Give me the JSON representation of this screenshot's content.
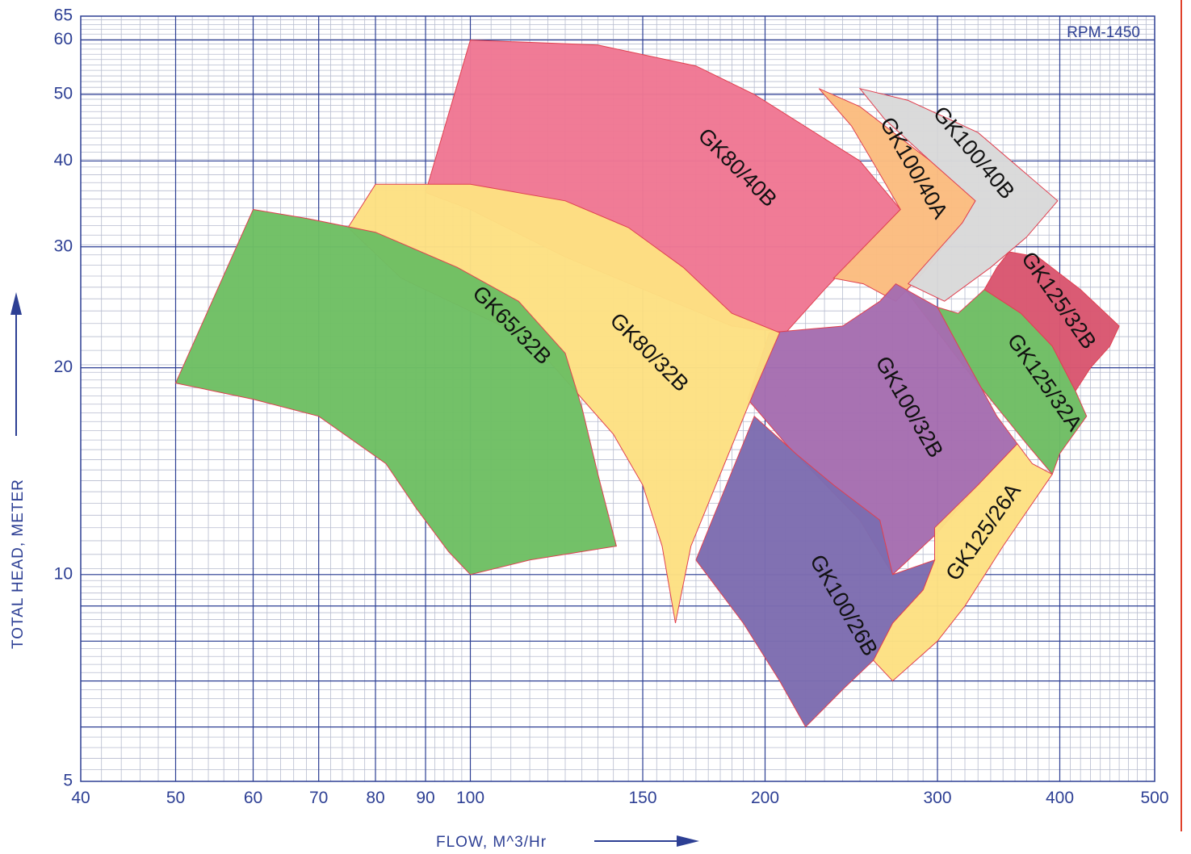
{
  "chart_data": {
    "type": "area",
    "title": "",
    "annotation": "RPM-1450",
    "xlabel": "FLOW, M^3/Hr",
    "ylabel": "TOTAL HEAD, METER",
    "xscale": "log",
    "yscale": "log",
    "xlim": [
      40,
      500
    ],
    "ylim": [
      5,
      65
    ],
    "grid": true,
    "x_ticks": [
      40,
      50,
      60,
      70,
      80,
      90,
      100,
      150,
      200,
      300,
      400,
      500
    ],
    "y_ticks": [
      5,
      10,
      20,
      30,
      40,
      50,
      60,
      65
    ],
    "series": [
      {
        "name": "GK80/40B",
        "color": "#ef7793",
        "label_angle": 45,
        "points": [
          [
            100,
            60
          ],
          [
            135,
            59
          ],
          [
            170,
            55
          ],
          [
            195,
            50
          ],
          [
            250,
            40
          ],
          [
            275,
            34
          ],
          [
            230,
            26
          ],
          [
            210,
            22.5
          ],
          [
            185,
            23
          ],
          [
            125,
            29
          ],
          [
            100,
            34
          ],
          [
            90,
            36
          ]
        ]
      },
      {
        "name": "GK100/40A",
        "color": "#fbbc7f",
        "label_angle": 60,
        "points": [
          [
            227,
            51
          ],
          [
            250,
            48
          ],
          [
            295,
            40
          ],
          [
            328,
            35
          ],
          [
            318,
            32.5
          ],
          [
            290,
            27.5
          ],
          [
            272,
            25
          ],
          [
            252,
            26.5
          ],
          [
            235,
            27
          ],
          [
            275,
            34
          ],
          [
            260,
            39
          ],
          [
            245,
            45
          ]
        ]
      },
      {
        "name": "GK100/40B",
        "color": "#d9d9d9",
        "label_angle": 50,
        "points": [
          [
            250,
            51
          ],
          [
            280,
            49
          ],
          [
            330,
            44
          ],
          [
            398,
            35
          ],
          [
            370,
            31
          ],
          [
            340,
            28
          ],
          [
            305,
            25
          ],
          [
            280,
            26.5
          ],
          [
            318,
            32.5
          ],
          [
            328,
            35
          ],
          [
            295,
            40
          ],
          [
            265,
            46
          ]
        ]
      },
      {
        "name": "GK125/32B",
        "color": "#d9566f",
        "label_angle": 55,
        "points": [
          [
            355,
            29.5
          ],
          [
            380,
            29
          ],
          [
            420,
            26
          ],
          [
            460,
            23
          ],
          [
            450,
            21.5
          ],
          [
            430,
            20
          ],
          [
            415,
            18.5
          ],
          [
            393,
            21.5
          ],
          [
            365,
            24
          ],
          [
            335,
            26
          ],
          [
            345,
            28
          ]
        ]
      },
      {
        "name": "GK125/32A",
        "color": "#6ebd63",
        "label_angle": 55,
        "points": [
          [
            278,
            26
          ],
          [
            300,
            24.5
          ],
          [
            315,
            24
          ],
          [
            335,
            26
          ],
          [
            365,
            24
          ],
          [
            393,
            21.5
          ],
          [
            415,
            18.5
          ],
          [
            426,
            17
          ],
          [
            400,
            15
          ],
          [
            393,
            14
          ],
          [
            370,
            15.5
          ],
          [
            320,
            20
          ]
        ]
      },
      {
        "name": "GK100/32B",
        "color": "#a56db0",
        "label_angle": 60,
        "points": [
          [
            202,
            22.5
          ],
          [
            240,
            23
          ],
          [
            262,
            25
          ],
          [
            272,
            26.5
          ],
          [
            300,
            24.5
          ],
          [
            318,
            21
          ],
          [
            345,
            17
          ],
          [
            362,
            15.5
          ],
          [
            330,
            13.5
          ],
          [
            300,
            11.5
          ],
          [
            270,
            10
          ],
          [
            250,
            12
          ],
          [
            210,
            15.5
          ],
          [
            192,
            18
          ]
        ]
      },
      {
        "name": "GK125/26A",
        "color": "#fde082",
        "label_angle": -55,
        "points": [
          [
            362,
            15.5
          ],
          [
            375,
            14.5
          ],
          [
            393,
            14
          ],
          [
            350,
            11
          ],
          [
            320,
            9
          ],
          [
            300,
            8
          ],
          [
            270,
            7
          ],
          [
            258,
            7.5
          ],
          [
            270,
            8.5
          ],
          [
            290,
            9.5
          ],
          [
            298,
            10.5
          ],
          [
            298,
            11.7
          ],
          [
            330,
            13.5
          ]
        ]
      },
      {
        "name": "GK100/26B",
        "color": "#7d6cb0",
        "label_angle": 60,
        "points": [
          [
            195,
            17
          ],
          [
            215,
            15
          ],
          [
            235,
            13.5
          ],
          [
            262,
            12
          ],
          [
            270,
            10
          ],
          [
            298,
            10.5
          ],
          [
            290,
            9.5
          ],
          [
            270,
            8.5
          ],
          [
            258,
            7.5
          ],
          [
            240,
            6.8
          ],
          [
            220,
            6
          ],
          [
            207,
            7
          ],
          [
            190,
            8.5
          ],
          [
            170,
            10.5
          ]
        ]
      },
      {
        "name": "GK80/32B",
        "color": "#fde082",
        "label_angle": 45,
        "points": [
          [
            80,
            37
          ],
          [
            100,
            37
          ],
          [
            125,
            35
          ],
          [
            145,
            32
          ],
          [
            165,
            28
          ],
          [
            185,
            24
          ],
          [
            207,
            22.5
          ],
          [
            195,
            18.5
          ],
          [
            180,
            14
          ],
          [
            168,
            11
          ],
          [
            162,
            8.5
          ],
          [
            157,
            11
          ],
          [
            150,
            13.5
          ],
          [
            140,
            16
          ],
          [
            115,
            22
          ],
          [
            85,
            27
          ],
          [
            75,
            32
          ]
        ]
      },
      {
        "name": "GK65/32B",
        "color": "#6ebf63",
        "label_angle": 45,
        "points": [
          [
            60,
            34
          ],
          [
            68,
            33
          ],
          [
            80,
            31.5
          ],
          [
            97,
            28
          ],
          [
            112,
            25
          ],
          [
            125,
            21
          ],
          [
            130,
            17.5
          ],
          [
            135,
            14
          ],
          [
            141,
            11
          ],
          [
            115,
            10.5
          ],
          [
            100,
            10
          ],
          [
            95,
            10.8
          ],
          [
            88,
            12.5
          ],
          [
            82,
            14.5
          ],
          [
            70,
            17
          ],
          [
            60,
            18
          ],
          [
            50,
            19
          ]
        ]
      }
    ],
    "region_labels": [
      {
        "name": "GK80/40B",
        "x": 187,
        "y": 39
      },
      {
        "name": "GK100/40A",
        "x": 283,
        "y": 39
      },
      {
        "name": "GK100/40B",
        "x": 326,
        "y": 41
      },
      {
        "name": "GK125/32B",
        "x": 398,
        "y": 25
      },
      {
        "name": "GK125/32A",
        "x": 385,
        "y": 19
      },
      {
        "name": "GK100/32B",
        "x": 280,
        "y": 17.5
      },
      {
        "name": "GK125/26A",
        "x": 335,
        "y": 11.5
      },
      {
        "name": "GK100/26B",
        "x": 240,
        "y": 9
      },
      {
        "name": "GK80/32B",
        "x": 152,
        "y": 21
      },
      {
        "name": "GK65/32B",
        "x": 110,
        "y": 23
      }
    ],
    "colors": {
      "grid_major": "#2d3f94",
      "grid_minor": "#b7bccf",
      "text": "#2d3f94",
      "frame": "#2d3f94"
    }
  }
}
